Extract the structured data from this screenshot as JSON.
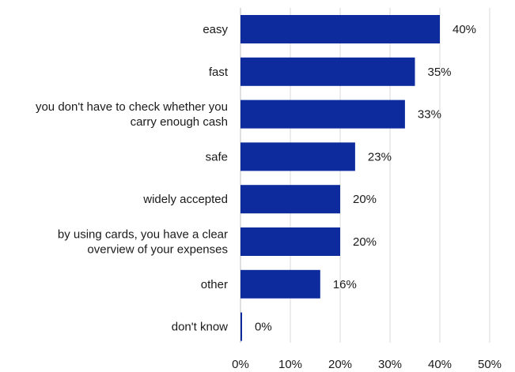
{
  "chart_data": {
    "type": "bar",
    "orientation": "horizontal",
    "categories": [
      "easy",
      "fast",
      "you don't have to check whether you\ncarry enough cash",
      "safe",
      "widely accepted",
      "by using cards, you have a clear\noverview of your expenses",
      "other",
      "don't know"
    ],
    "values": [
      40,
      35,
      33,
      23,
      20,
      20,
      16,
      0
    ],
    "data_labels": [
      "40%",
      "35%",
      "33%",
      "23%",
      "20%",
      "20%",
      "16%",
      "0%"
    ],
    "xlim": [
      0,
      50
    ],
    "x_ticks": [
      0,
      10,
      20,
      30,
      40,
      50
    ],
    "x_tick_labels": [
      "0%",
      "10%",
      "20%",
      "30%",
      "40%",
      "50%"
    ],
    "title": "",
    "xlabel": "",
    "ylabel": "",
    "grid": "vertical",
    "legend": "none",
    "bar_color": "#0d2b9c"
  }
}
